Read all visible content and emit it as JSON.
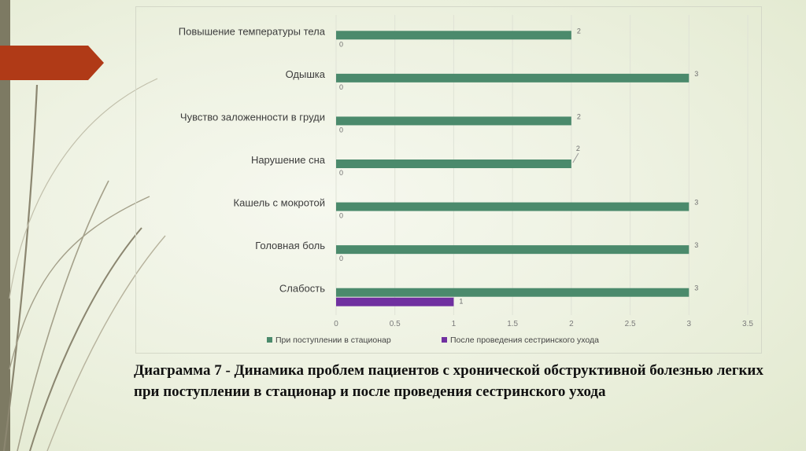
{
  "colors": {
    "series1": "#4b8a6c",
    "series2": "#7030a0",
    "gridline": "#dfe2d6",
    "accent_arrow": "#b03a17",
    "left_band": "#7d7a63"
  },
  "caption": "Диаграмма 7 - Динамика проблем пациентов с хронической обструктивной болезнью легких при поступлении в стационар и после  проведения сестринского ухода",
  "chart_data": {
    "type": "bar",
    "orientation": "horizontal",
    "categories": [
      "Повышение температуры тела",
      "Одышка",
      "Чувство заложенности в груди",
      "Нарушение сна",
      "Кашель с мокротой",
      "Головная боль",
      "Слабость"
    ],
    "series": [
      {
        "name": "При поступлении в стационар",
        "values": [
          2,
          3,
          2,
          2,
          3,
          3,
          3
        ],
        "color": "#4b8a6c"
      },
      {
        "name": "После проведения сестринского ухода",
        "values": [
          0,
          0,
          0,
          0,
          0,
          0,
          1
        ],
        "color": "#7030a0"
      }
    ],
    "xlim": [
      0,
      3.5
    ],
    "xticks": [
      "0",
      "0.5",
      "1",
      "1.5",
      "2",
      "2.5",
      "3",
      "3.5"
    ],
    "grid": true,
    "legend": "bottom"
  }
}
